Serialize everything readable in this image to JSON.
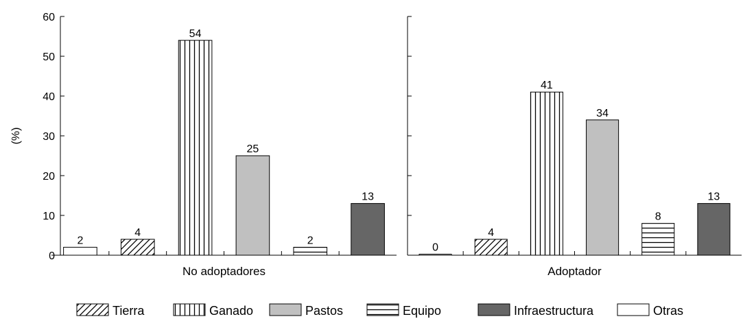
{
  "chart_data": {
    "type": "bar",
    "ylabel": "(%)",
    "ylim": [
      0,
      60
    ],
    "yticks": [
      0,
      10,
      20,
      30,
      40,
      50,
      60
    ],
    "grid": false,
    "legend_position": "bottom",
    "series_order": [
      "Otras",
      "Tierra",
      "Ganado",
      "Pastos",
      "Equipo",
      "Infraestructura"
    ],
    "legend_order": [
      "Tierra",
      "Ganado",
      "Pastos",
      "Equipo",
      "Infraestructura",
      "Otras"
    ],
    "styles": {
      "Otras": "white",
      "Tierra": "diagonal-hatch",
      "Ganado": "vertical-hatch",
      "Pastos": "#c0c0c0",
      "Equipo": "horizontal-hatch",
      "Infraestructura": "#666666"
    },
    "panels": [
      {
        "label": "No adoptadores",
        "values": {
          "Otras": 2,
          "Tierra": 4,
          "Ganado": 54,
          "Pastos": 25,
          "Equipo": 2,
          "Infraestructura": 13
        }
      },
      {
        "label": "Adoptador",
        "values": {
          "Otras": 0,
          "Tierra": 4,
          "Ganado": 41,
          "Pastos": 34,
          "Equipo": 8,
          "Infraestructura": 13
        }
      }
    ]
  }
}
